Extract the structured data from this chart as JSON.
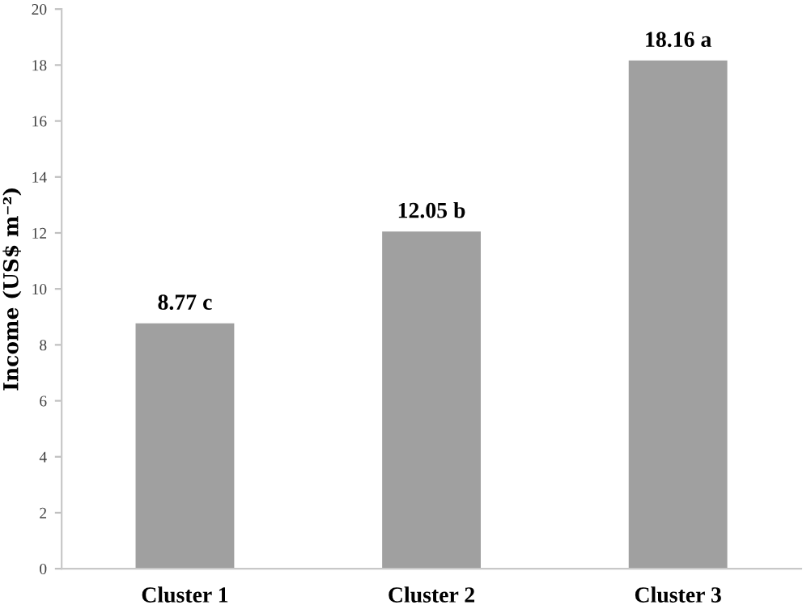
{
  "chart_data": {
    "type": "bar",
    "ylabel": "Income (US$ m⁻²)",
    "categories": [
      "Cluster 1",
      "Cluster 2",
      "Cluster 3"
    ],
    "values": [
      8.77,
      12.05,
      18.16
    ],
    "value_labels": [
      "8.77 c",
      "12.05 b",
      "18.16 a"
    ],
    "color": "#a0a0a0",
    "ylim": [
      0,
      20
    ],
    "yticks": [
      0,
      2,
      4,
      6,
      8,
      10,
      12,
      14,
      16,
      18,
      20
    ],
    "grid": false,
    "legend": false
  }
}
